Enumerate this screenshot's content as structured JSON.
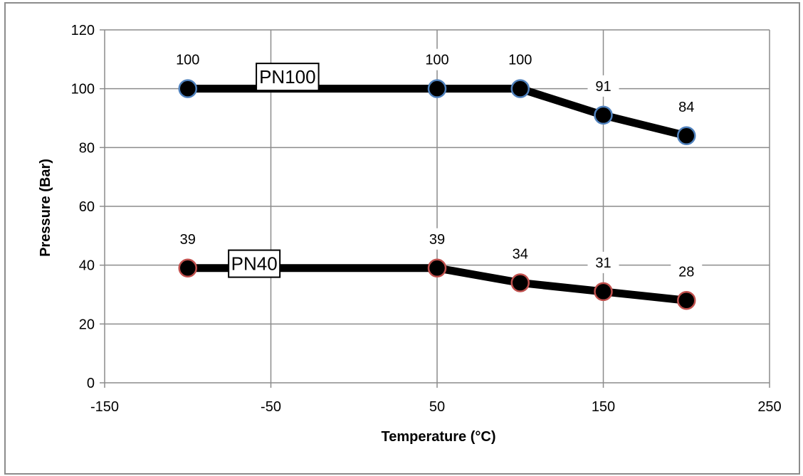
{
  "chart_data": {
    "type": "line",
    "xlabel": "Temperature (°C)",
    "ylabel": "Pressure (Bar)",
    "xlim": [
      -150,
      250
    ],
    "ylim": [
      0,
      120
    ],
    "xticks": [
      -150,
      -50,
      50,
      150,
      250
    ],
    "yticks": [
      0,
      20,
      40,
      60,
      80,
      100,
      120
    ],
    "grid": true,
    "series": [
      {
        "name": "PN100",
        "marker_edge_color": "#4f81bd",
        "points": [
          {
            "x": -100,
            "y": 100,
            "label": "100"
          },
          {
            "x": 50,
            "y": 100,
            "label": "100"
          },
          {
            "x": 100,
            "y": 100,
            "label": "100"
          },
          {
            "x": 150,
            "y": 91,
            "label": "91"
          },
          {
            "x": 200,
            "y": 84,
            "label": "84"
          }
        ]
      },
      {
        "name": "PN40",
        "marker_edge_color": "#c0504d",
        "points": [
          {
            "x": -100,
            "y": 39,
            "label": "39"
          },
          {
            "x": 50,
            "y": 39,
            "label": "39"
          },
          {
            "x": 100,
            "y": 34,
            "label": "34"
          },
          {
            "x": 150,
            "y": 31,
            "label": "31"
          },
          {
            "x": 200,
            "y": 28,
            "label": "28"
          }
        ]
      }
    ],
    "series_label_positions": [
      {
        "name": "PN100",
        "x": -40,
        "y": 104
      },
      {
        "name": "PN40",
        "x": -60,
        "y": 40.5
      }
    ]
  }
}
